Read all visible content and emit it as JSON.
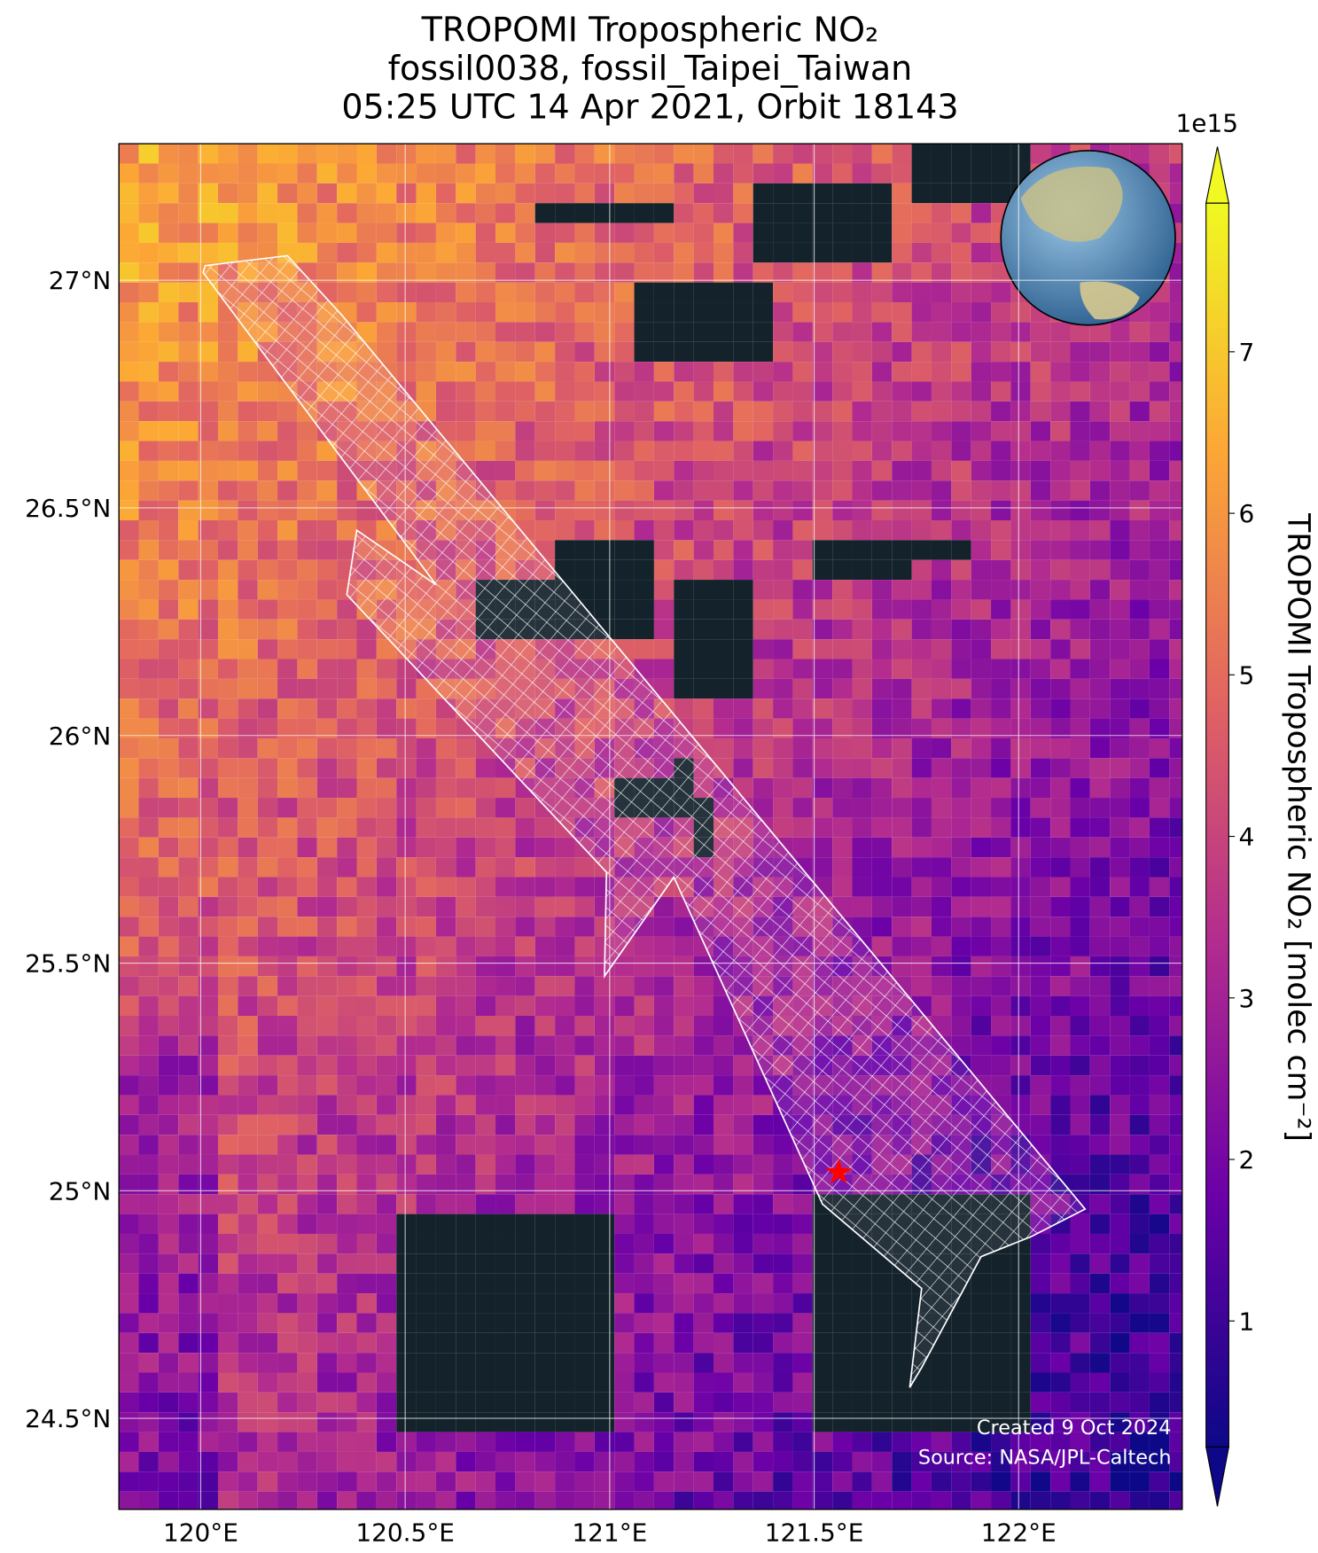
{
  "chart_data": {
    "type": "map",
    "title": [
      "TROPOMI Tropospheric NO₂",
      "fossil0038, fossil_Taipei_Taiwan",
      "05:25 UTC 14 Apr 2021, Orbit 18143"
    ],
    "xlim": [
      119.8,
      122.4
    ],
    "ylim": [
      24.3,
      27.3
    ],
    "xticks": [
      {
        "value": 120,
        "label": "120°E"
      },
      {
        "value": 120.5,
        "label": "120.5°E"
      },
      {
        "value": 121,
        "label": "121°E"
      },
      {
        "value": 121.5,
        "label": "121.5°E"
      },
      {
        "value": 122,
        "label": "122°E"
      }
    ],
    "yticks": [
      {
        "value": 24.5,
        "label": "24.5°N"
      },
      {
        "value": 25,
        "label": "25°N"
      },
      {
        "value": 25.5,
        "label": "25.5°N"
      },
      {
        "value": 26,
        "label": "26°N"
      },
      {
        "value": 26.5,
        "label": "26.5°N"
      },
      {
        "value": 27,
        "label": "27°N"
      }
    ],
    "grid": true,
    "marker": {
      "lon": 121.56,
      "lat": 25.04,
      "color": "#ff0000"
    },
    "colorbar": {
      "label": "TROPOMI Tropospheric NO₂ [molec cm⁻²]",
      "offset_label": "1e15",
      "lim": [
        0.22,
        7.92
      ],
      "ticks": [
        1,
        2,
        3,
        4,
        5,
        6,
        7
      ],
      "colors": [
        "#0d0887",
        "#6a00a8",
        "#b12a90",
        "#e16462",
        "#fca636",
        "#f0f921"
      ]
    },
    "credits": [
      "Created 9 Oct 2024",
      "Source: NASA/JPL-Caltech"
    ]
  }
}
